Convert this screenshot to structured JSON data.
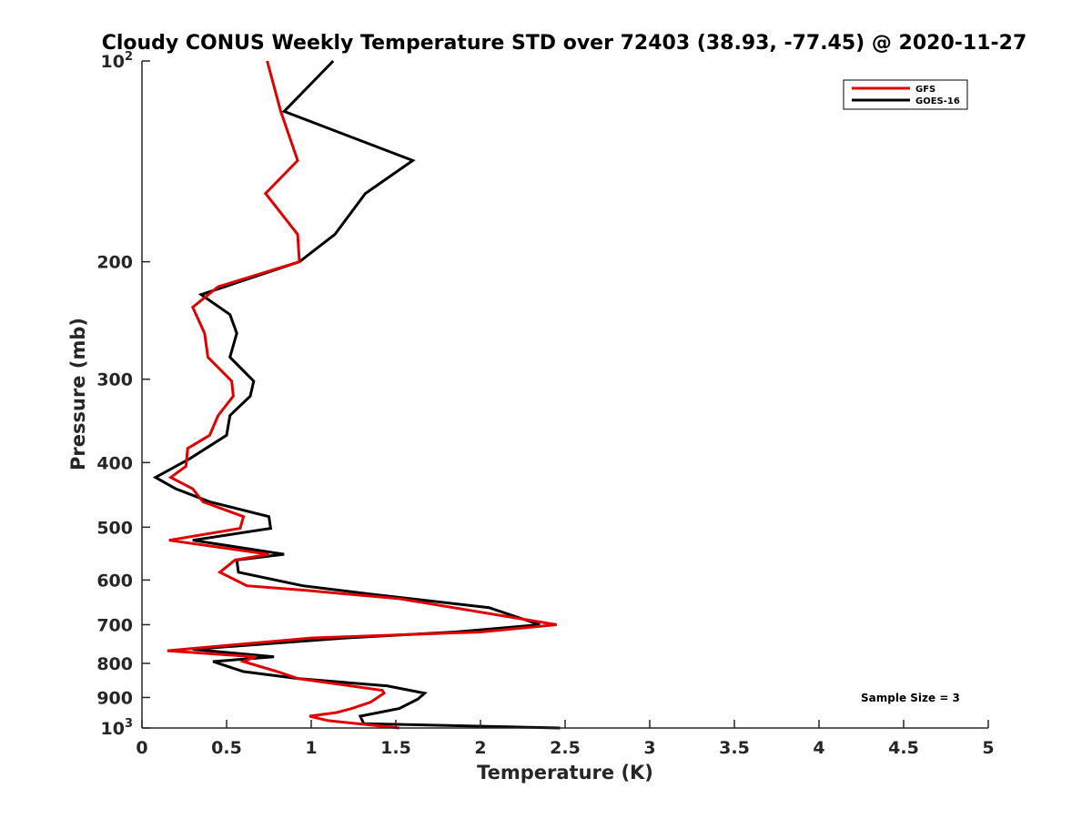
{
  "chart_data": {
    "type": "line",
    "title": "Cloudy CONUS Weekly Temperature STD over 72403 (38.93, -77.45) @ 2020-11-27",
    "xlabel": "Temperature (K)",
    "ylabel": "Pressure (mb)",
    "xlim": [
      0,
      5
    ],
    "ylim": [
      1000,
      100
    ],
    "y_scale": "log",
    "y_reversed": true,
    "grid": false,
    "legend_position": "top-right",
    "x_ticks": [
      "0",
      "0.5",
      "1",
      "1.5",
      "2",
      "2.5",
      "3",
      "3.5",
      "4",
      "4.5",
      "5"
    ],
    "y_ticks": [
      {
        "value": 100,
        "base": "10",
        "exp": "2"
      },
      {
        "value": 200,
        "base": "200",
        "exp": ""
      },
      {
        "value": 300,
        "base": "300",
        "exp": ""
      },
      {
        "value": 400,
        "base": "400",
        "exp": ""
      },
      {
        "value": 500,
        "base": "500",
        "exp": ""
      },
      {
        "value": 600,
        "base": "600",
        "exp": ""
      },
      {
        "value": 700,
        "base": "700",
        "exp": ""
      },
      {
        "value": 800,
        "base": "800",
        "exp": ""
      },
      {
        "value": 900,
        "base": "900",
        "exp": ""
      },
      {
        "value": 1000,
        "base": "10",
        "exp": "3"
      }
    ],
    "annotation": "Sample Size = 3",
    "series": [
      {
        "name": "GFS",
        "color": "#e00000",
        "points": [
          [
            0.74,
            100
          ],
          [
            0.82,
            119
          ],
          [
            0.92,
            141
          ],
          [
            0.73,
            158
          ],
          [
            0.92,
            182
          ],
          [
            0.93,
            200
          ],
          [
            0.45,
            218
          ],
          [
            0.3,
            234
          ],
          [
            0.37,
            256
          ],
          [
            0.39,
            278
          ],
          [
            0.53,
            302
          ],
          [
            0.54,
            318
          ],
          [
            0.45,
            340
          ],
          [
            0.4,
            364
          ],
          [
            0.27,
            381
          ],
          [
            0.26,
            405
          ],
          [
            0.17,
            421
          ],
          [
            0.3,
            438
          ],
          [
            0.36,
            458
          ],
          [
            0.6,
            482
          ],
          [
            0.58,
            502
          ],
          [
            0.16,
            523
          ],
          [
            0.75,
            549
          ],
          [
            0.55,
            560
          ],
          [
            0.46,
            584
          ],
          [
            0.62,
            612
          ],
          [
            0.97,
            622
          ],
          [
            1.52,
            640
          ],
          [
            2.45,
            700
          ],
          [
            2.0,
            718
          ],
          [
            1.0,
            733
          ],
          [
            0.15,
            766
          ],
          [
            0.67,
            782
          ],
          [
            0.6,
            795
          ],
          [
            0.8,
            823
          ],
          [
            0.92,
            843
          ],
          [
            1.42,
            878
          ],
          [
            1.43,
            887
          ],
          [
            1.35,
            915
          ],
          [
            1.24,
            935
          ],
          [
            1.15,
            948
          ],
          [
            0.99,
            960
          ],
          [
            1.1,
            975
          ],
          [
            1.52,
            1000
          ]
        ]
      },
      {
        "name": "GOES-16",
        "color": "#000000",
        "points": [
          [
            1.13,
            100
          ],
          [
            0.84,
            119
          ],
          [
            1.6,
            141
          ],
          [
            1.32,
            158
          ],
          [
            1.14,
            182
          ],
          [
            0.93,
            200
          ],
          [
            0.35,
            224
          ],
          [
            0.52,
            240
          ],
          [
            0.56,
            256
          ],
          [
            0.52,
            278
          ],
          [
            0.66,
            302
          ],
          [
            0.64,
            318
          ],
          [
            0.52,
            340
          ],
          [
            0.5,
            364
          ],
          [
            0.28,
            395
          ],
          [
            0.08,
            421
          ],
          [
            0.2,
            438
          ],
          [
            0.4,
            458
          ],
          [
            0.75,
            482
          ],
          [
            0.76,
            502
          ],
          [
            0.3,
            523
          ],
          [
            0.84,
            549
          ],
          [
            0.56,
            560
          ],
          [
            0.57,
            584
          ],
          [
            0.95,
            612
          ],
          [
            1.35,
            630
          ],
          [
            2.05,
            660
          ],
          [
            2.35,
            700
          ],
          [
            1.85,
            718
          ],
          [
            1.2,
            733
          ],
          [
            0.3,
            762
          ],
          [
            0.78,
            782
          ],
          [
            0.42,
            795
          ],
          [
            0.6,
            823
          ],
          [
            0.92,
            843
          ],
          [
            1.45,
            865
          ],
          [
            1.67,
            887
          ],
          [
            1.63,
            905
          ],
          [
            1.52,
            935
          ],
          [
            1.29,
            960
          ],
          [
            1.31,
            985
          ],
          [
            2.47,
            1000
          ]
        ]
      }
    ]
  }
}
